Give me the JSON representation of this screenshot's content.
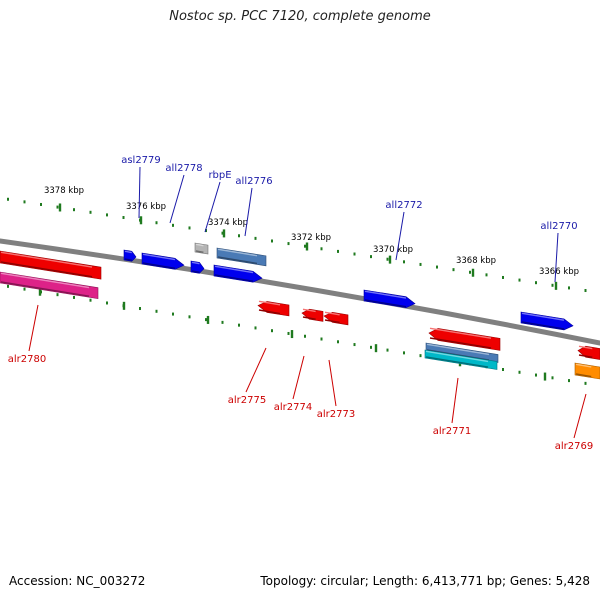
{
  "title": "Nostoc sp. PCC 7120, complete genome",
  "footer": {
    "accession": "Accession: NC_003272",
    "topology": "Topology: circular; Length: 6,413,771 bp; Genes: 5,428"
  },
  "scale": {
    "unit": "kbp",
    "ticks": [
      "3378 kbp",
      "3376 kbp",
      "3374 kbp",
      "3372 kbp",
      "3370 kbp",
      "3368 kbp",
      "3366 kbp"
    ]
  },
  "colors": {
    "backbone": "#808080",
    "tick": "#1f7a1f",
    "plus_label": "#1a1aa8",
    "minus_label": "#cc0000",
    "scale_text": "#000000"
  },
  "genes": [
    {
      "name": "asl2779",
      "strand": "plus",
      "color": "#0000ee"
    },
    {
      "name": "all2778",
      "strand": "plus",
      "color": "#0000ee"
    },
    {
      "name": "rbpE",
      "strand": "plus",
      "color": "#b4b4b4"
    },
    {
      "name": "all2776",
      "strand": "plus",
      "color": "#4a7ab5"
    },
    {
      "name": "all2772",
      "strand": "plus",
      "color": "#0000ee"
    },
    {
      "name": "all2770",
      "strand": "plus",
      "color": "#0000ee"
    },
    {
      "name": "alr2780",
      "strand": "minus",
      "color": "#ee0000"
    },
    {
      "name": "alr2775",
      "strand": "minus",
      "color": "#ee0000"
    },
    {
      "name": "alr2774",
      "strand": "minus",
      "color": "#ee0000"
    },
    {
      "name": "alr2773",
      "strand": "minus",
      "color": "#ee0000"
    },
    {
      "name": "alr2771",
      "strand": "minus",
      "color": "#ee0000"
    },
    {
      "name": "alr2769",
      "strand": "minus",
      "color": "#ee0000"
    }
  ],
  "extra_features": [
    {
      "color": "#dd2288"
    },
    {
      "color": "#4a7ab5"
    },
    {
      "color": "#00b8c8"
    },
    {
      "color": "#ff8c00"
    }
  ]
}
